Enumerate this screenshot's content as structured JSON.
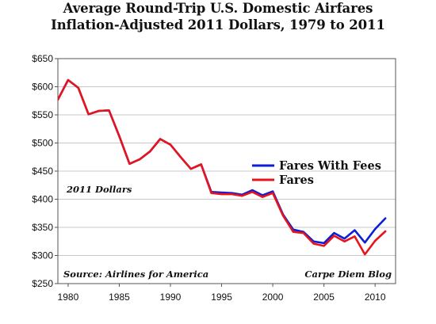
{
  "chart_data": {
    "type": "line",
    "title": "Average Round-Trip U.S. Domestic Airfares",
    "subtitle": "Inflation-Adjusted 2011 Dollars, 1979 to 2011",
    "xlabel": "",
    "ylabel": "",
    "xlim": [
      1979,
      2012
    ],
    "ylim": [
      250,
      650
    ],
    "xticks": [
      1980,
      1985,
      1990,
      1995,
      2000,
      2005,
      2010
    ],
    "xtick_labels": [
      "1980",
      "1985",
      "1990",
      "1995",
      "2000",
      "2005",
      "2010"
    ],
    "yticks": [
      250,
      300,
      350,
      400,
      450,
      500,
      550,
      600,
      650
    ],
    "ytick_labels": [
      "$250",
      "$300",
      "$350",
      "$400",
      "$450",
      "$500",
      "$550",
      "$600",
      "$650"
    ],
    "grid": true,
    "legend_position": "right",
    "annotations": {
      "units_note": "2011 Dollars",
      "source": "Source: Airlines for America",
      "credit": "Carpe Diem Blog"
    },
    "x": [
      1979,
      1980,
      1981,
      1982,
      1983,
      1984,
      1985,
      1986,
      1987,
      1988,
      1989,
      1990,
      1991,
      1992,
      1993,
      1994,
      1995,
      1996,
      1997,
      1998,
      1999,
      2000,
      2001,
      2002,
      2003,
      2004,
      2005,
      2006,
      2007,
      2008,
      2009,
      2010,
      2011
    ],
    "series": [
      {
        "name": "Fares With Fees",
        "color": "#0a1fd6",
        "values": [
          577,
          612,
          598,
          551,
          557,
          558,
          512,
          463,
          471,
          485,
          507,
          497,
          475,
          454,
          462,
          413,
          412,
          411,
          408,
          416,
          407,
          414,
          373,
          346,
          342,
          325,
          322,
          340,
          330,
          345,
          323,
          347,
          366
        ]
      },
      {
        "name": "Fares",
        "color": "#e8141b",
        "values": [
          577,
          612,
          598,
          551,
          557,
          558,
          512,
          463,
          471,
          485,
          507,
          497,
          475,
          454,
          462,
          411,
          409,
          409,
          406,
          413,
          404,
          411,
          371,
          342,
          340,
          321,
          317,
          335,
          325,
          334,
          302,
          326,
          343
        ]
      }
    ]
  }
}
